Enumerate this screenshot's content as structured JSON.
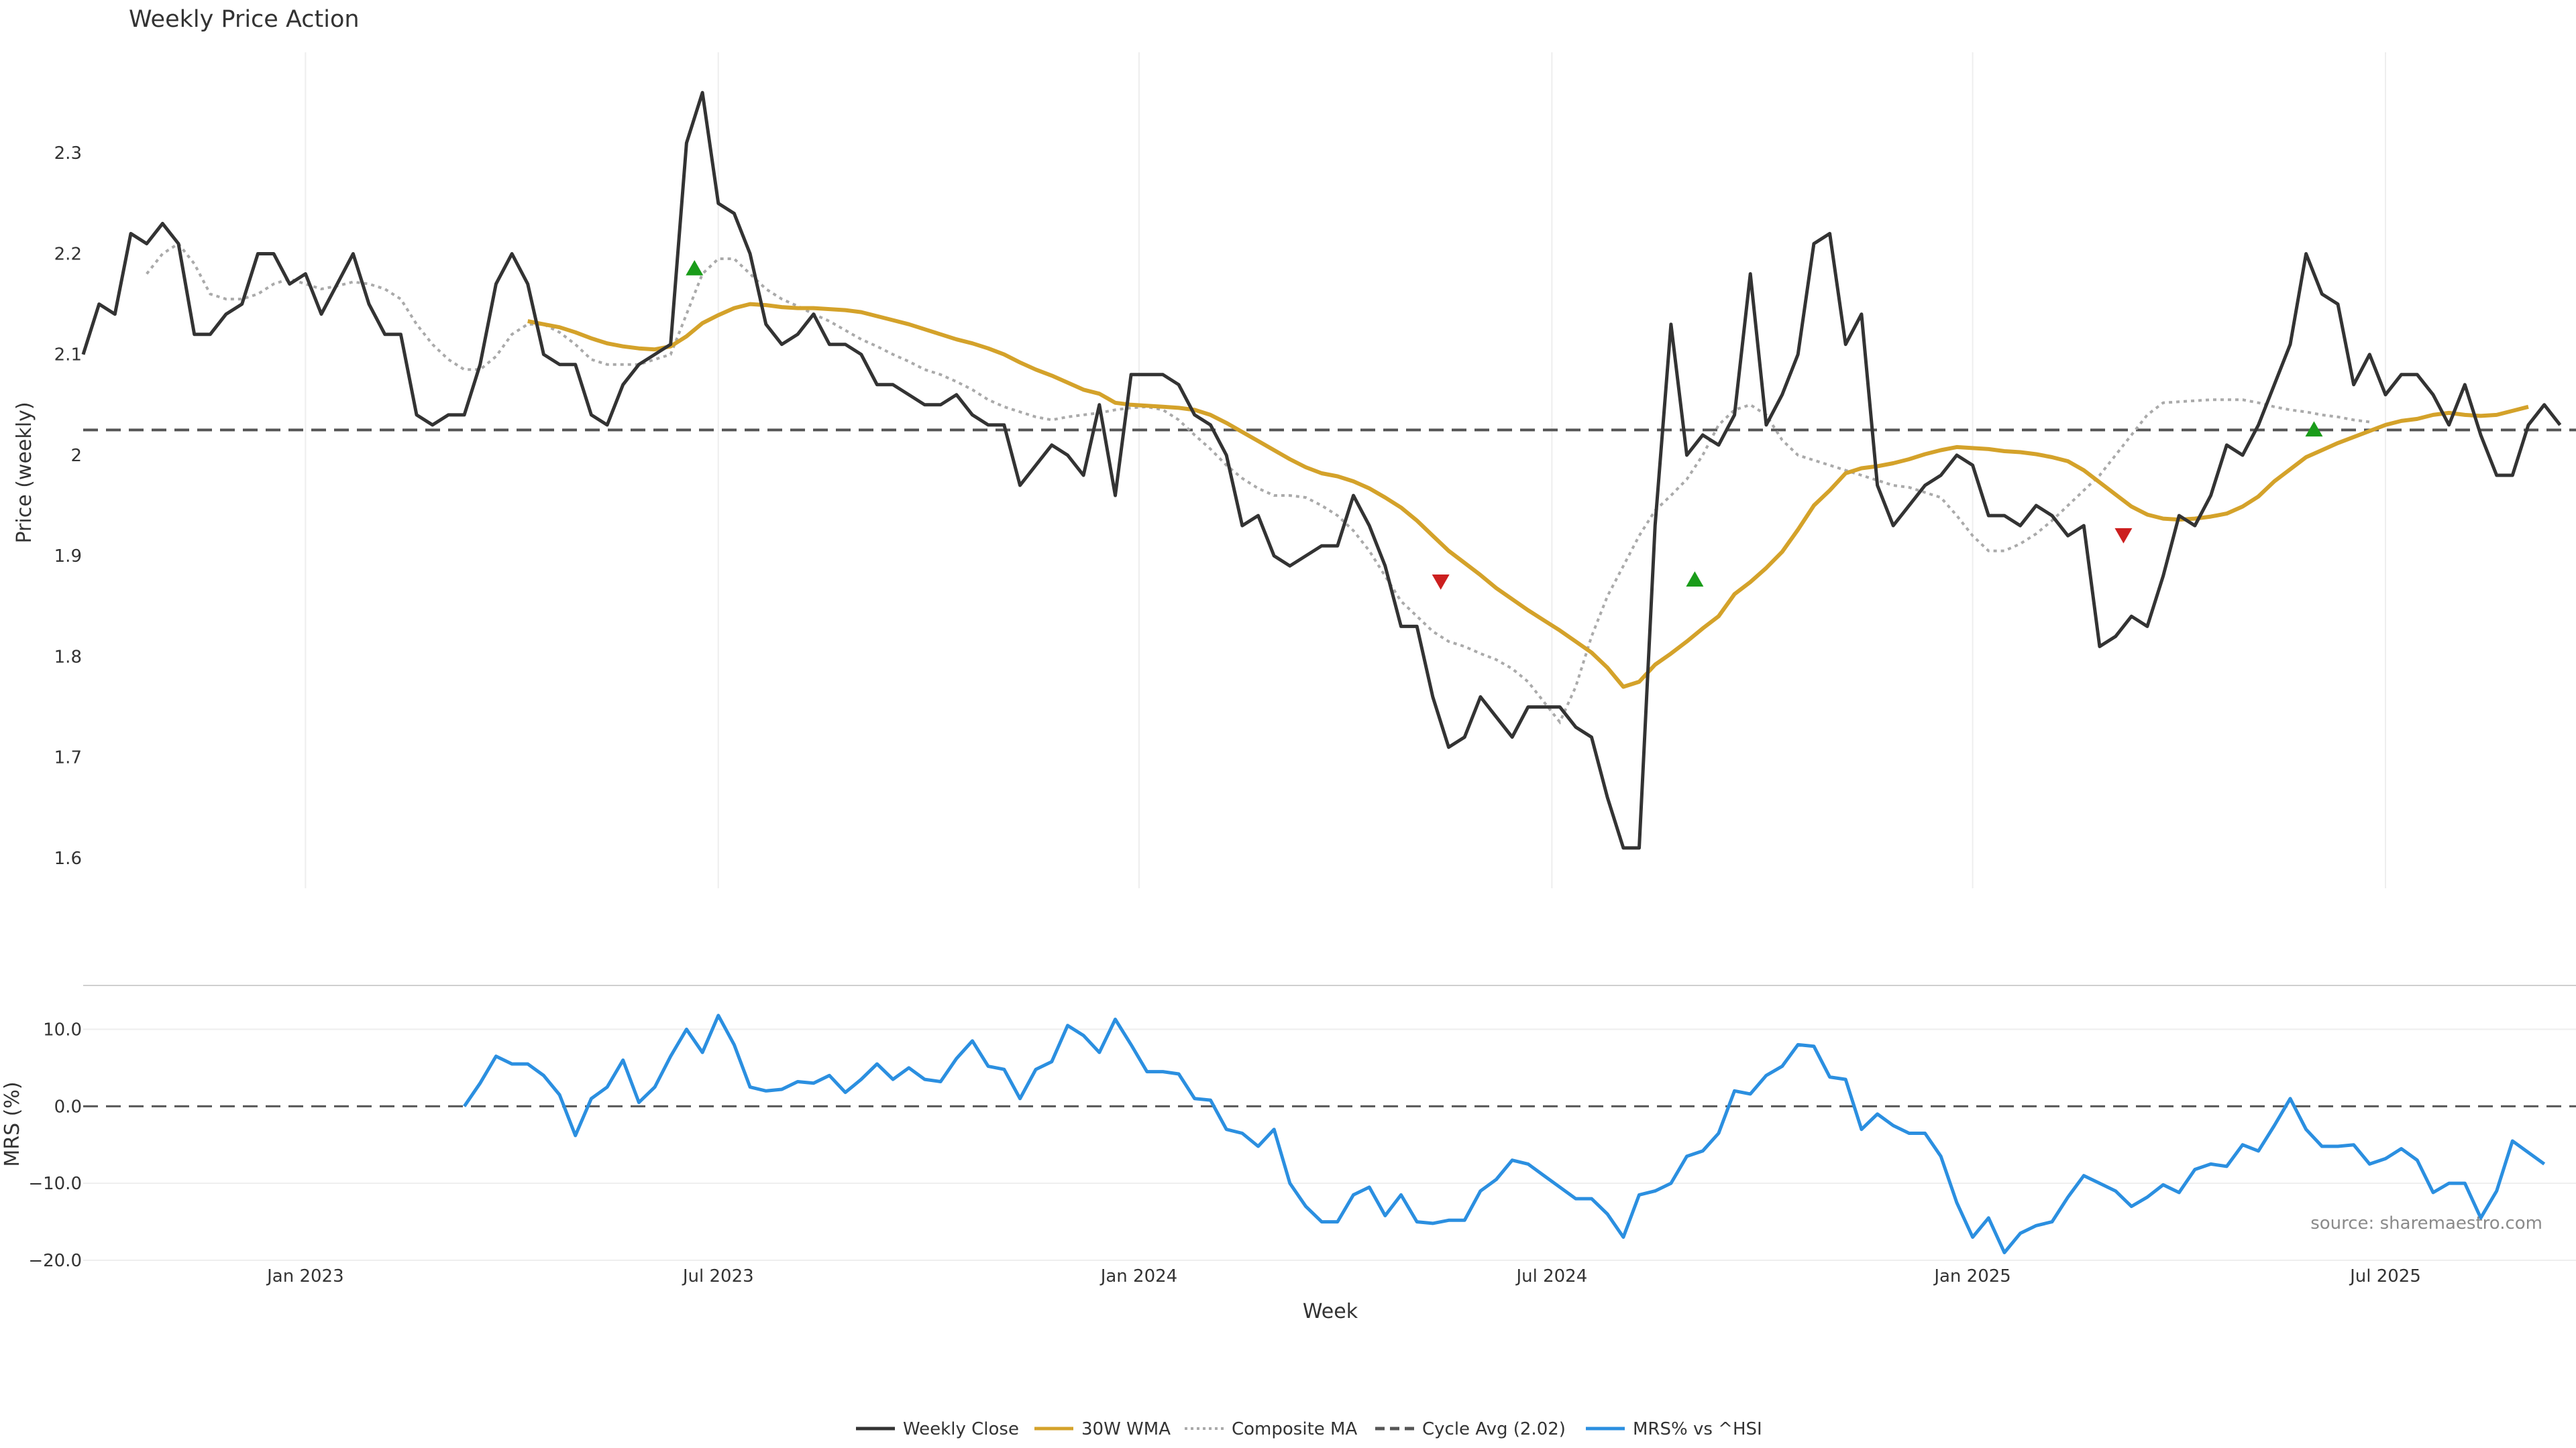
{
  "chart_data": {
    "title": "Weekly Price Action",
    "xlabel": "Week",
    "source": "source: sharemaestro.com",
    "x_ticks": [
      {
        "label": "Jan 2023",
        "week": 14
      },
      {
        "label": "Jul 2023",
        "week": 40
      },
      {
        "label": "Jan 2024",
        "week": 66.5
      },
      {
        "label": "Jul 2024",
        "week": 92.5
      },
      {
        "label": "Jan 2025",
        "week": 119
      },
      {
        "label": "Jul 2025",
        "week": 145
      }
    ],
    "x_range": [
      0,
      157
    ],
    "legend": [
      {
        "label": "Weekly Close",
        "color": "#333333",
        "style": "solid"
      },
      {
        "label": "30W WMA",
        "color": "#d4a22a",
        "style": "solid"
      },
      {
        "label": "Composite MA",
        "color": "#aaaaaa",
        "style": "dotted"
      },
      {
        "label": "Cycle Avg (2.02)",
        "color": "#555555",
        "style": "dashed"
      },
      {
        "label": "MRS% vs ^HSI",
        "color": "#2b8fe0",
        "style": "solid"
      }
    ],
    "price_panel": {
      "ylabel": "Price (weekly)",
      "ylim": [
        1.57,
        2.4
      ],
      "y_ticks": [
        1.6,
        1.7,
        1.8,
        1.9,
        2,
        2.1,
        2.2,
        2.3
      ],
      "y_tick_labels": [
        "1.6",
        "1.7",
        "1.8",
        "1.9",
        "2",
        "2.1",
        "2.2",
        "2.3"
      ],
      "cycle_avg": 2.025,
      "grid": "vertical",
      "weekly_close": [
        2.1,
        2.15,
        2.14,
        2.22,
        2.21,
        2.23,
        2.21,
        2.12,
        2.12,
        2.14,
        2.15,
        2.2,
        2.2,
        2.17,
        2.18,
        2.14,
        2.17,
        2.2,
        2.15,
        2.12,
        2.12,
        2.04,
        2.03,
        2.04,
        2.04,
        2.09,
        2.17,
        2.2,
        2.17,
        2.1,
        2.09,
        2.09,
        2.04,
        2.03,
        2.07,
        2.09,
        2.1,
        2.11,
        2.31,
        2.36,
        2.25,
        2.24,
        2.2,
        2.13,
        2.11,
        2.12,
        2.14,
        2.11,
        2.11,
        2.1,
        2.07,
        2.07,
        2.06,
        2.05,
        2.05,
        2.06,
        2.04,
        2.03,
        2.03,
        1.97,
        1.99,
        2.01,
        2.0,
        1.98,
        2.05,
        1.96,
        2.08,
        2.08,
        2.08,
        2.07,
        2.04,
        2.03,
        2.0,
        1.93,
        1.94,
        1.9,
        1.89,
        1.9,
        1.91,
        1.91,
        1.96,
        1.93,
        1.89,
        1.83,
        1.83,
        1.76,
        1.71,
        1.72,
        1.76,
        1.74,
        1.72,
        1.75,
        1.75,
        1.75,
        1.73,
        1.72,
        1.66,
        1.61,
        1.61,
        1.93,
        2.13,
        2.0,
        2.02,
        2.01,
        2.04,
        2.18,
        2.03,
        2.06,
        2.1,
        2.21,
        2.22,
        2.11,
        2.14,
        1.97,
        1.93,
        1.95,
        1.97,
        1.98,
        2.0,
        1.99,
        1.94,
        1.94,
        1.93,
        1.95,
        1.94,
        1.92,
        1.93,
        1.81,
        1.82,
        1.84,
        1.83,
        1.88,
        1.94,
        1.93,
        1.96,
        2.01,
        2.0,
        2.03,
        2.07,
        2.11,
        2.2,
        2.16,
        2.15,
        2.07,
        2.1,
        2.06,
        2.08,
        2.08,
        2.06,
        2.03,
        2.07,
        2.02,
        1.98,
        1.98,
        2.03,
        2.05,
        2.03
      ],
      "wma_30w_start": 28,
      "wma_30w": [
        2.133,
        2.13,
        2.127,
        2.122,
        2.116,
        2.111,
        2.108,
        2.106,
        2.105,
        2.108,
        2.118,
        2.131,
        2.139,
        2.146,
        2.15,
        2.149,
        2.147,
        2.146,
        2.146,
        2.145,
        2.144,
        2.142,
        2.138,
        2.134,
        2.13,
        2.125,
        2.12,
        2.115,
        2.111,
        2.106,
        2.1,
        2.092,
        2.085,
        2.079,
        2.072,
        2.065,
        2.061,
        2.052,
        2.05,
        2.049,
        2.048,
        2.047,
        2.045,
        2.04,
        2.032,
        2.023,
        2.014,
        2.005,
        1.996,
        1.988,
        1.982,
        1.979,
        1.974,
        1.967,
        1.958,
        1.948,
        1.935,
        1.92,
        1.905,
        1.893,
        1.881,
        1.868,
        1.857,
        1.846,
        1.836,
        1.826,
        1.815,
        1.804,
        1.789,
        1.77,
        1.775,
        1.792,
        1.803,
        1.815,
        1.828,
        1.84,
        1.862,
        1.874,
        1.888,
        1.904,
        1.926,
        1.95,
        1.965,
        1.982,
        1.987,
        1.989,
        1.992,
        1.996,
        2.001,
        2.005,
        2.008,
        2.007,
        2.006,
        2.004,
        2.003,
        2.001,
        1.998,
        1.994,
        1.985,
        1.973,
        1.961,
        1.949,
        1.941,
        1.937,
        1.936,
        1.937,
        1.939,
        1.942,
        1.949,
        1.959,
        1.974,
        1.986,
        1.998,
        2.005,
        2.012,
        2.018,
        2.024,
        2.03,
        2.034,
        2.036,
        2.04,
        2.042,
        2.04,
        2.039,
        2.04,
        2.044,
        2.048
      ],
      "composite_ma_start": 4,
      "composite_ma": [
        2.18,
        2.2,
        2.21,
        2.19,
        2.16,
        2.155,
        2.155,
        2.16,
        2.17,
        2.175,
        2.17,
        2.165,
        2.168,
        2.172,
        2.17,
        2.165,
        2.155,
        2.13,
        2.11,
        2.095,
        2.085,
        2.085,
        2.098,
        2.12,
        2.13,
        2.13,
        2.122,
        2.11,
        2.095,
        2.09,
        2.09,
        2.09,
        2.095,
        2.1,
        2.14,
        2.18,
        2.195,
        2.195,
        2.18,
        2.165,
        2.155,
        2.148,
        2.14,
        2.133,
        2.124,
        2.115,
        2.108,
        2.1,
        2.093,
        2.085,
        2.08,
        2.073,
        2.065,
        2.055,
        2.048,
        2.043,
        2.038,
        2.035,
        2.038,
        2.04,
        2.042,
        2.045,
        2.047,
        2.048,
        2.045,
        2.035,
        2.02,
        2.006,
        1.99,
        1.977,
        1.967,
        1.96,
        1.96,
        1.958,
        1.95,
        1.94,
        1.925,
        1.905,
        1.88,
        1.855,
        1.84,
        1.825,
        1.815,
        1.81,
        1.803,
        1.797,
        1.788,
        1.775,
        1.755,
        1.735,
        1.77,
        1.82,
        1.86,
        1.89,
        1.92,
        1.945,
        1.96,
        1.976,
        2.0,
        2.03,
        2.045,
        2.05,
        2.04,
        2.015,
        2.0,
        1.995,
        1.99,
        1.985,
        1.98,
        1.975,
        1.97,
        1.968,
        1.963,
        1.958,
        1.94,
        1.92,
        1.905,
        1.905,
        1.912,
        1.922,
        1.935,
        1.95,
        1.965,
        1.98,
        2.0,
        2.02,
        2.04,
        2.052,
        2.053,
        2.054,
        2.055,
        2.055,
        2.055,
        2.052,
        2.048,
        2.045,
        2.043,
        2.04,
        2.038,
        2.035,
        2.033
      ],
      "buy_signals": [
        {
          "week": 38.5,
          "price": 2.185
        },
        {
          "week": 101.5,
          "price": 1.876
        },
        {
          "week": 140.5,
          "price": 2.025
        }
      ],
      "sell_signals": [
        {
          "week": 85.5,
          "price": 1.875
        },
        {
          "week": 128.5,
          "price": 1.921
        }
      ]
    },
    "mrs_panel": {
      "ylabel": "MRS (%)",
      "ylim": [
        -20,
        15
      ],
      "y_ticks": [
        -20,
        -10,
        0,
        10
      ],
      "y_tick_labels": [
        "−20.0",
        "−10.0",
        "0.0",
        "10.0"
      ],
      "zero_line": 0,
      "start_week": 24,
      "mrs": [
        0,
        3,
        6.5,
        5.5,
        5.5,
        4,
        1.5,
        -3.8,
        1,
        2.5,
        6,
        0.5,
        2.5,
        6.5,
        10,
        7,
        11.8,
        8,
        2.5,
        2,
        2.2,
        3.2,
        3,
        4,
        1.8,
        3.5,
        5.5,
        3.5,
        5,
        3.5,
        3.2,
        6.2,
        8.5,
        5.2,
        4.8,
        1,
        4.8,
        5.8,
        10.5,
        9.2,
        7,
        11.3,
        8,
        4.5,
        4.5,
        4.2,
        1,
        0.8,
        -3,
        -3.5,
        -5.2,
        -3,
        -10,
        -13,
        -15,
        -15,
        -11.5,
        -10.5,
        -14.2,
        -11.5,
        -15,
        -15.2,
        -14.8,
        -14.8,
        -11,
        -9.5,
        -7,
        -7.5,
        -9,
        -10.5,
        -12,
        -12,
        -14,
        -17,
        -11.5,
        -11,
        -10,
        -6.5,
        -5.8,
        -3.5,
        2,
        1.6,
        4,
        5.2,
        8,
        7.8,
        3.8,
        3.5,
        -3,
        -1,
        -2.5,
        -3.5,
        -3.5,
        -6.5,
        -12.5,
        -17,
        -14.5,
        -19,
        -16.5,
        -15.5,
        -15,
        -11.8,
        -9,
        -10,
        -11,
        -13,
        -11.8,
        -10.2,
        -11.2,
        -8.2,
        -7.5,
        -7.8,
        -5,
        -5.8,
        -2.5,
        1,
        -3,
        -5.2,
        -5.2,
        -5,
        -7.5,
        -6.8,
        -5.5,
        -7,
        -11.2,
        -10,
        -10,
        -14.5,
        -11,
        -4.5,
        -6,
        -7.5
      ]
    }
  }
}
